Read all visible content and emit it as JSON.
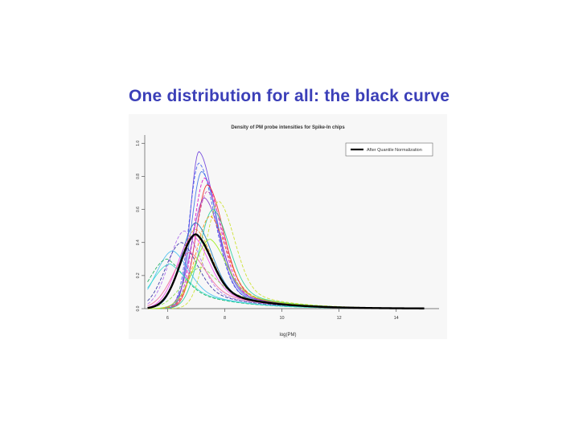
{
  "slide": {
    "title": "One distribution for all: the black curve"
  },
  "chart_data": {
    "type": "line",
    "title": "Density of PM probe intensities for Spike-In chips",
    "xlabel": "log(PM)",
    "ylabel": "",
    "xlim": [
      5.2,
      15.5
    ],
    "ylim": [
      0,
      1.05
    ],
    "x_ticks": [
      6,
      8,
      10,
      12,
      14
    ],
    "y_ticks": [
      0.0,
      0.2,
      0.4,
      0.6,
      0.8,
      1.0
    ],
    "grid": false,
    "legend_position": "top-right",
    "legend": [
      {
        "label": "After Quantile Normalization",
        "color": "#000000"
      }
    ],
    "series": [
      {
        "name": "After Quantile Normalization",
        "color": "#000000",
        "bold": true,
        "peak_x": 7.0,
        "peak_y": 0.45
      },
      {
        "color": "#6a3ddc",
        "peak_x": 7.1,
        "peak_y": 0.95
      },
      {
        "color": "#3355ee",
        "peak_x": 7.1,
        "peak_y": 0.88
      },
      {
        "color": "#3a6fe8",
        "peak_x": 7.2,
        "peak_y": 0.83
      },
      {
        "color": "#e000c0",
        "peak_x": 7.3,
        "peak_y": 0.79
      },
      {
        "color": "#ee2222",
        "peak_x": 7.4,
        "peak_y": 0.75
      },
      {
        "color": "#cc44aa",
        "peak_x": 7.4,
        "peak_y": 0.71
      },
      {
        "color": "#8833cc",
        "peak_x": 7.3,
        "peak_y": 0.67
      },
      {
        "color": "#c9e020",
        "peak_x": 7.8,
        "peak_y": 0.65
      },
      {
        "color": "#22cc99",
        "peak_x": 7.6,
        "peak_y": 0.6
      },
      {
        "color": "#ff8800",
        "peak_x": 7.5,
        "peak_y": 0.56
      },
      {
        "color": "#1177bb",
        "peak_x": 7.0,
        "peak_y": 0.52
      },
      {
        "color": "#aa66ee",
        "peak_x": 6.6,
        "peak_y": 0.47
      },
      {
        "color": "#ee44ee",
        "peak_x": 6.9,
        "peak_y": 0.44
      },
      {
        "color": "#2a2aa0",
        "peak_x": 6.5,
        "peak_y": 0.4
      },
      {
        "color": "#44bbee",
        "peak_x": 6.2,
        "peak_y": 0.35
      },
      {
        "color": "#11aa55",
        "peak_x": 6.0,
        "peak_y": 0.3
      },
      {
        "color": "#33ddcc",
        "peak_x": 6.1,
        "peak_y": 0.27
      },
      {
        "color": "#88dd44",
        "peak_x": 7.2,
        "peak_y": 0.25
      },
      {
        "color": "#ee6699",
        "peak_x": 6.8,
        "peak_y": 0.34
      },
      {
        "color": "#dd9922",
        "peak_x": 7.0,
        "peak_y": 0.48
      },
      {
        "color": "#99ee11",
        "peak_x": 7.5,
        "peak_y": 0.42
      }
    ]
  }
}
